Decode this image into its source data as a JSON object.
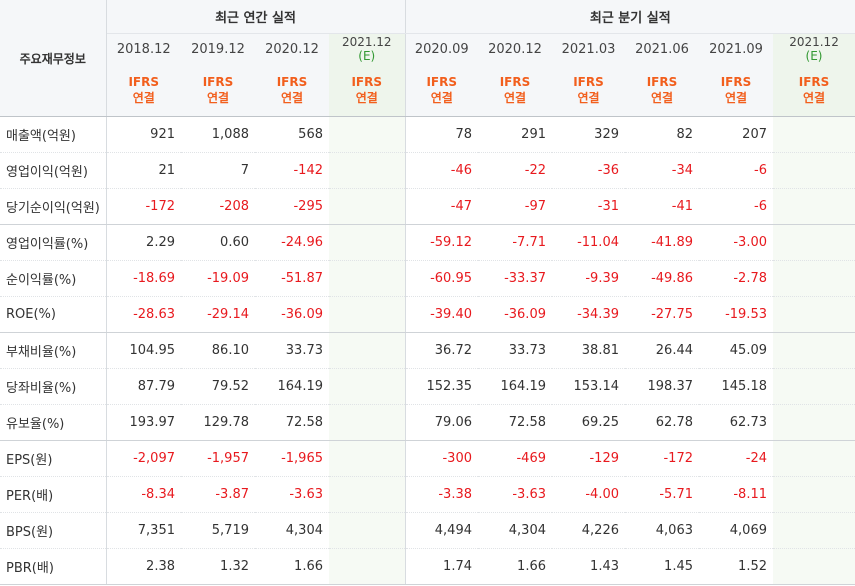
{
  "header": {
    "row_header_label": "주요재무정보",
    "annual_title": "최근 연간 실적",
    "quarterly_title": "최근 분기 실적"
  },
  "periods": [
    {
      "label": "2018.12",
      "ifrs": "IFRS",
      "basis": "연결",
      "estimate": false
    },
    {
      "label": "2019.12",
      "ifrs": "IFRS",
      "basis": "연결",
      "estimate": false
    },
    {
      "label": "2020.12",
      "ifrs": "IFRS",
      "basis": "연결",
      "estimate": false
    },
    {
      "label": "2021.12",
      "note": "(E)",
      "ifrs": "IFRS",
      "basis": "연결",
      "estimate": true
    },
    {
      "label": "2020.09",
      "ifrs": "IFRS",
      "basis": "연결",
      "estimate": false
    },
    {
      "label": "2020.12",
      "ifrs": "IFRS",
      "basis": "연결",
      "estimate": false
    },
    {
      "label": "2021.03",
      "ifrs": "IFRS",
      "basis": "연결",
      "estimate": false
    },
    {
      "label": "2021.06",
      "ifrs": "IFRS",
      "basis": "연결",
      "estimate": false
    },
    {
      "label": "2021.09",
      "ifrs": "IFRS",
      "basis": "연결",
      "estimate": false
    },
    {
      "label": "2021.12",
      "note": "(E)",
      "ifrs": "IFRS",
      "basis": "연결",
      "estimate": true
    }
  ],
  "rows": [
    {
      "label": "매출액(억원)",
      "values": [
        "921",
        "1,088",
        "568",
        "",
        "78",
        "291",
        "329",
        "82",
        "207",
        ""
      ]
    },
    {
      "label": "영업이익(억원)",
      "values": [
        "21",
        "7",
        "-142",
        "",
        "-46",
        "-22",
        "-36",
        "-34",
        "-6",
        ""
      ]
    },
    {
      "label": "당기순이익(억원)",
      "values": [
        "-172",
        "-208",
        "-295",
        "",
        "-47",
        "-97",
        "-31",
        "-41",
        "-6",
        ""
      ]
    },
    {
      "label": "영업이익률(%)",
      "values": [
        "2.29",
        "0.60",
        "-24.96",
        "",
        "-59.12",
        "-7.71",
        "-11.04",
        "-41.89",
        "-3.00",
        ""
      ]
    },
    {
      "label": "순이익률(%)",
      "values": [
        "-18.69",
        "-19.09",
        "-51.87",
        "",
        "-60.95",
        "-33.37",
        "-9.39",
        "-49.86",
        "-2.78",
        ""
      ]
    },
    {
      "label": "ROE(%)",
      "values": [
        "-28.63",
        "-29.14",
        "-36.09",
        "",
        "-39.40",
        "-36.09",
        "-34.39",
        "-27.75",
        "-19.53",
        ""
      ]
    },
    {
      "label": "부채비율(%)",
      "values": [
        "104.95",
        "86.10",
        "33.73",
        "",
        "36.72",
        "33.73",
        "38.81",
        "26.44",
        "45.09",
        ""
      ]
    },
    {
      "label": "당좌비율(%)",
      "values": [
        "87.79",
        "79.52",
        "164.19",
        "",
        "152.35",
        "164.19",
        "153.14",
        "198.37",
        "145.18",
        ""
      ]
    },
    {
      "label": "유보율(%)",
      "values": [
        "193.97",
        "129.78",
        "72.58",
        "",
        "79.06",
        "72.58",
        "69.25",
        "62.78",
        "62.73",
        ""
      ]
    },
    {
      "label": "EPS(원)",
      "values": [
        "-2,097",
        "-1,957",
        "-1,965",
        "",
        "-300",
        "-469",
        "-129",
        "-172",
        "-24",
        ""
      ]
    },
    {
      "label": "PER(배)",
      "values": [
        "-8.34",
        "-3.87",
        "-3.63",
        "",
        "-3.38",
        "-3.63",
        "-4.00",
        "-5.71",
        "-8.11",
        ""
      ]
    },
    {
      "label": "BPS(원)",
      "values": [
        "7,351",
        "5,719",
        "4,304",
        "",
        "4,494",
        "4,304",
        "4,226",
        "4,063",
        "4,069",
        ""
      ]
    },
    {
      "label": "PBR(배)",
      "values": [
        "2.38",
        "1.32",
        "1.66",
        "",
        "1.74",
        "1.66",
        "1.43",
        "1.45",
        "1.52",
        ""
      ]
    }
  ],
  "colors": {
    "negative": "#e8191e",
    "ifrs_label": "#f25f1d",
    "estimate_note": "#339933",
    "header_bg": "#f5f7f9",
    "estimate_bg": "#f6faf4"
  }
}
